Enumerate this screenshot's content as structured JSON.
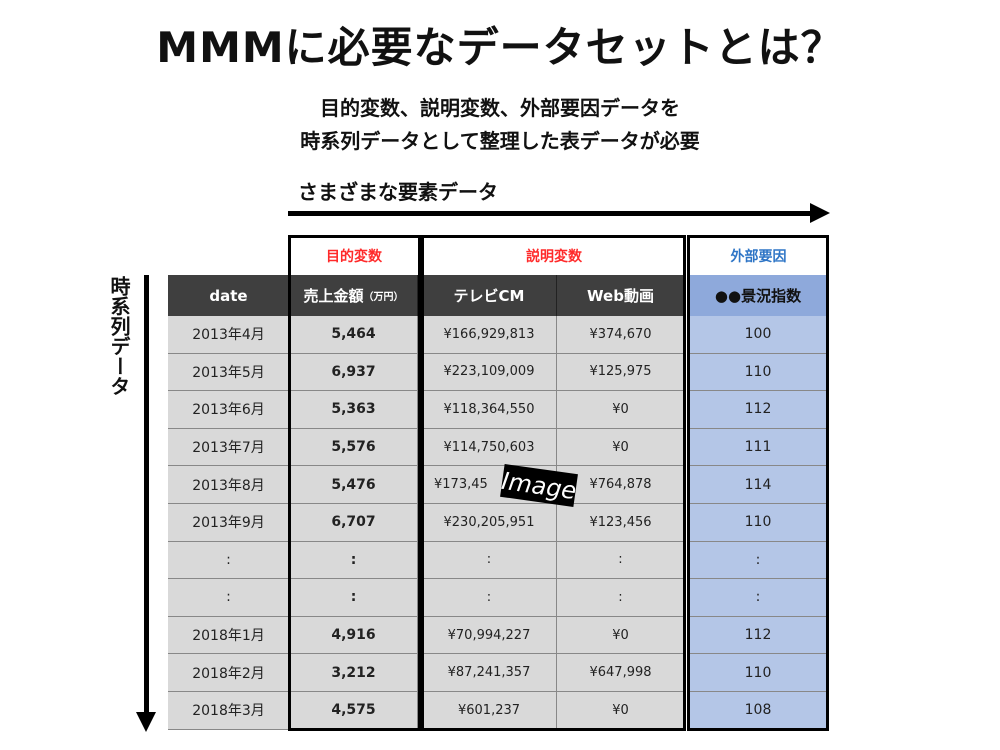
{
  "title": "MMMに必要なデータセットとは？",
  "subtitle_lines": [
    "目的変数、説明変数、外部要因データを",
    "時系列データとして整理した表データが必要"
  ],
  "horizontal_arrow_label": "さまざまな要素データ",
  "vertical_arrow_label": "時系列データ",
  "groups": {
    "target": {
      "label": "目的変数",
      "color": "#ff2a2a"
    },
    "explanatory": {
      "label": "説明変数",
      "color": "#ff2a2a"
    },
    "external": {
      "label": "外部要因",
      "color": "#2e75c6"
    }
  },
  "columns": [
    "date",
    "売上金額",
    "テレビCM",
    "Web動画",
    "●●景況指数"
  ],
  "sales_unit": "（万円）",
  "rows": [
    [
      "2013年4月",
      "5,464",
      "¥166,929,813",
      "¥374,670",
      "100"
    ],
    [
      "2013年5月",
      "6,937",
      "¥223,109,009",
      "¥125,975",
      "110"
    ],
    [
      "2013年6月",
      "5,363",
      "¥118,364,550",
      "¥0",
      "112"
    ],
    [
      "2013年7月",
      "5,576",
      "¥114,750,603",
      "¥0",
      "111"
    ],
    [
      "2013年8月",
      "5,476",
      "¥173,45",
      "¥764,878",
      "114"
    ],
    [
      "2013年9月",
      "6,707",
      "¥230,205,951",
      "¥123,456",
      "110"
    ],
    [
      ":",
      ":",
      ":",
      ":",
      ":"
    ],
    [
      ":",
      ":",
      ":",
      ":",
      ":"
    ],
    [
      "2018年1月",
      "4,916",
      "¥70,994,227",
      "¥0",
      "112"
    ],
    [
      "2018年2月",
      "3,212",
      "¥87,241,357",
      "¥647,998",
      "110"
    ],
    [
      "2018年3月",
      "4,575",
      "¥601,237",
      "¥0",
      "108"
    ]
  ],
  "overlay_label": "Image"
}
